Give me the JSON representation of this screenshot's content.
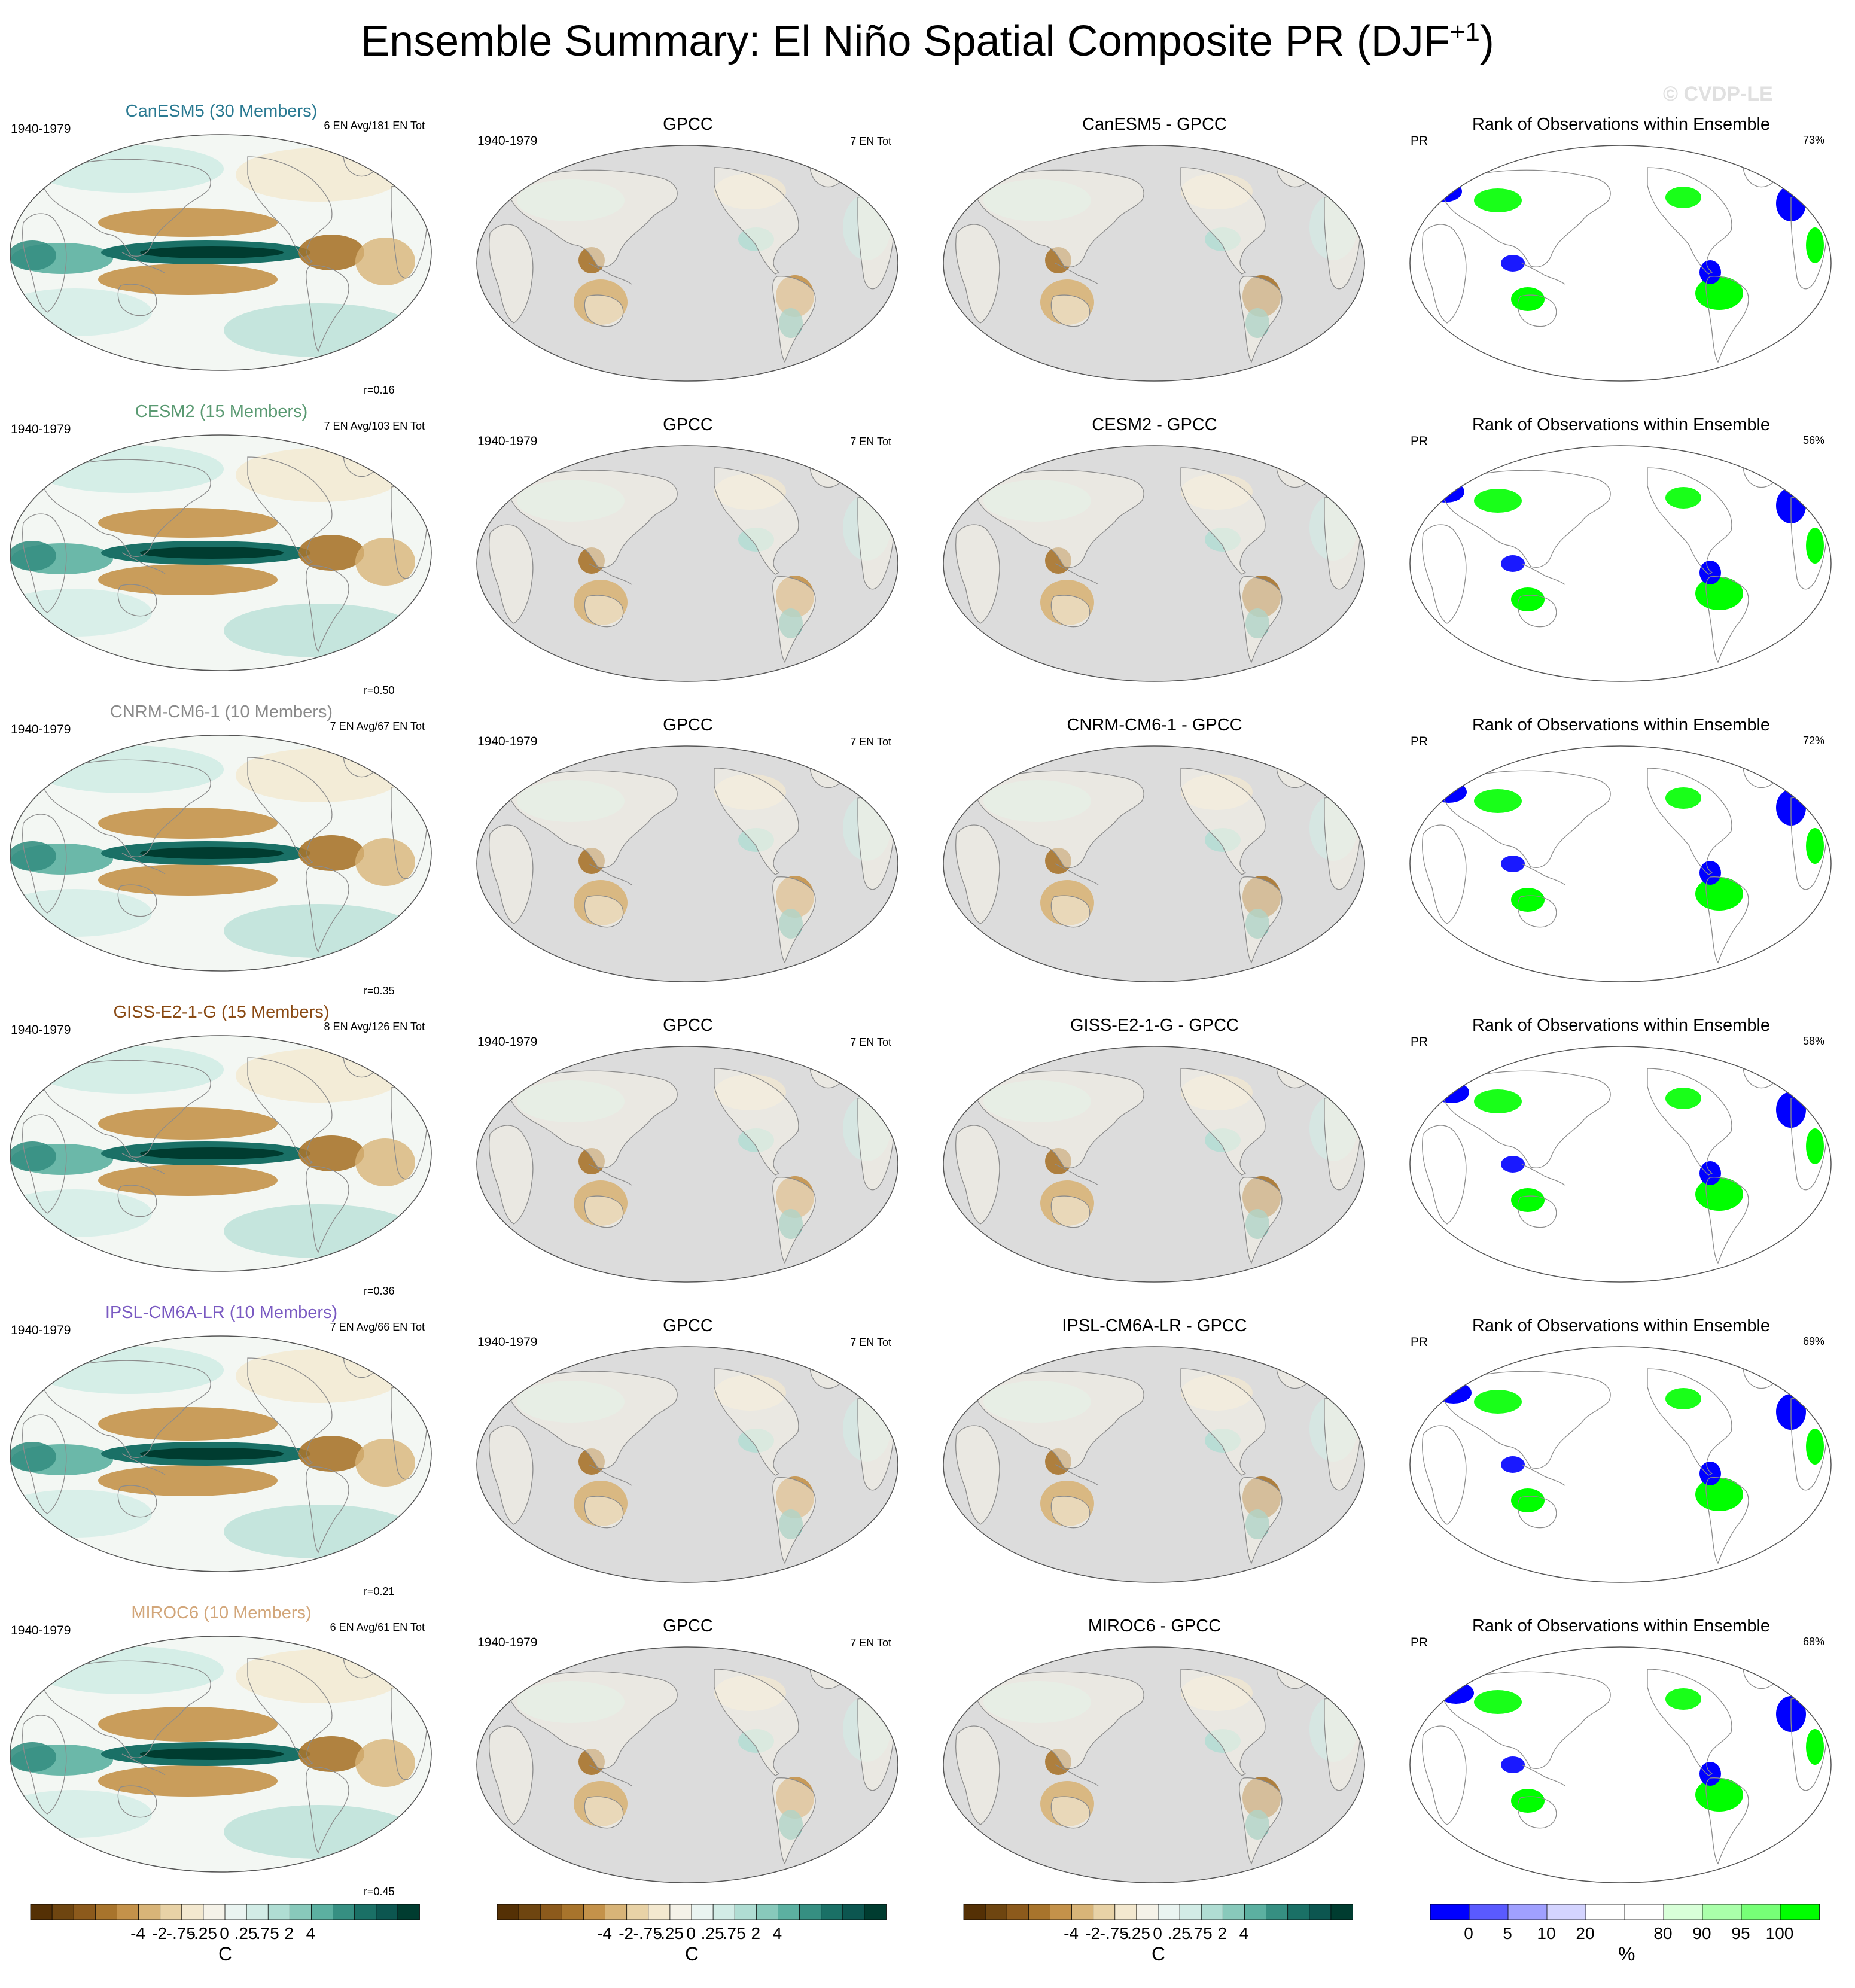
{
  "title": "Ensemble Summary: El Niño Spatial Composite PR (DJF",
  "title_sup": "+1",
  "watermark": "© CVDP-LE",
  "colors": {
    "ocean_gray": "#dcdcdc",
    "coast": "#8c8c8c",
    "rank_low": "#0000ff",
    "rank_high": "#00ff00"
  },
  "rows": [
    {
      "model": "CanESM5",
      "members": "CanESM5 (30 Members)",
      "color": "#2a7a92",
      "years": "1940-1979",
      "events": "6 EN Avg/181 EN Tot",
      "r": "r=0.16",
      "obs_title": "GPCC",
      "obs_years": "1940-1979",
      "obs_events": "7 EN Tot",
      "diff_title": "CanESM5 - GPCC",
      "rank_title": "Rank of Observations within Ensemble",
      "rank_var": "PR",
      "rank_pct": "73%"
    },
    {
      "model": "CESM2",
      "members": "CESM2 (15 Members)",
      "color": "#5a9a72",
      "years": "1940-1979",
      "events": "7 EN Avg/103 EN Tot",
      "r": "r=0.50",
      "obs_title": "GPCC",
      "obs_years": "1940-1979",
      "obs_events": "7 EN Tot",
      "diff_title": "CESM2 - GPCC",
      "rank_title": "Rank of Observations within Ensemble",
      "rank_var": "PR",
      "rank_pct": "56%"
    },
    {
      "model": "CNRM-CM6-1",
      "members": "CNRM-CM6-1 (10 Members)",
      "color": "#8a8a8a",
      "years": "1940-1979",
      "events": "7 EN Avg/67 EN Tot",
      "r": "r=0.35",
      "obs_title": "GPCC",
      "obs_years": "1940-1979",
      "obs_events": "7 EN Tot",
      "diff_title": "CNRM-CM6-1 - GPCC",
      "rank_title": "Rank of Observations within Ensemble",
      "rank_var": "PR",
      "rank_pct": "72%"
    },
    {
      "model": "GISS-E2-1-G",
      "members": "GISS-E2-1-G (15 Members)",
      "color": "#8a4a14",
      "years": "1940-1979",
      "events": "8 EN Avg/126 EN Tot",
      "r": "r=0.36",
      "obs_title": "GPCC",
      "obs_years": "1940-1979",
      "obs_events": "7 EN Tot",
      "diff_title": "GISS-E2-1-G - GPCC",
      "rank_title": "Rank of Observations within Ensemble",
      "rank_var": "PR",
      "rank_pct": "58%"
    },
    {
      "model": "IPSL-CM6A-LR",
      "members": "IPSL-CM6A-LR (10 Members)",
      "color": "#7a5ac2",
      "years": "1940-1979",
      "events": "7 EN Avg/66 EN Tot",
      "r": "r=0.21",
      "obs_title": "GPCC",
      "obs_years": "1940-1979",
      "obs_events": "7 EN Tot",
      "diff_title": "IPSL-CM6A-LR - GPCC",
      "rank_title": "Rank of Observations within Ensemble",
      "rank_var": "PR",
      "rank_pct": "69%"
    },
    {
      "model": "MIROC6",
      "members": "MIROC6 (10 Members)",
      "color": "#d2a67a",
      "years": "1940-1979",
      "events": "6 EN Avg/61 EN Tot",
      "r": "r=0.45",
      "obs_title": "GPCC",
      "obs_years": "1940-1979",
      "obs_events": "7 EN Tot",
      "diff_title": "MIROC6 - GPCC",
      "rank_title": "Rank of Observations within Ensemble",
      "rank_var": "PR",
      "rank_pct": "68%"
    }
  ],
  "colorbars": {
    "pr": {
      "unit": "C",
      "labels": [
        "-4",
        "-2",
        "-.75",
        "-.25",
        "0",
        ".25",
        ".75",
        "2",
        "4"
      ],
      "colors": [
        "#543005",
        "#6e4510",
        "#8c5a1c",
        "#a8742c",
        "#c4924a",
        "#d8b478",
        "#e8d2a6",
        "#f3e8cf",
        "#f5f2e8",
        "#eaf4f1",
        "#d2ece6",
        "#b0ddd3",
        "#88c9bb",
        "#5cb0a1",
        "#368f82",
        "#1a7066",
        "#0c5650",
        "#003c30"
      ]
    },
    "rank": {
      "unit": "%",
      "labels": [
        "0",
        "5",
        "10",
        "20",
        "80",
        "90",
        "95",
        "100"
      ],
      "colors": [
        "#0000ff",
        "#5a5aff",
        "#a0a0ff",
        "#d4d4ff",
        "#ffffff",
        "#ffffff",
        "#d8ffd8",
        "#aaffaa",
        "#77ff77",
        "#00ff00"
      ]
    }
  },
  "chart_data": [
    {
      "type": "heatmap",
      "panel": "ensemble mean composite",
      "title": "CanESM5 (30 Members)",
      "subtitle": "6 EN Avg/181 EN Tot",
      "period": "1940-1979",
      "pattern_correlation": 0.16,
      "unit": "C",
      "levels": [
        -4,
        -2,
        -0.75,
        -0.25,
        0,
        0.25,
        0.75,
        2,
        4
      ]
    },
    {
      "type": "heatmap",
      "panel": "observations",
      "title": "GPCC",
      "subtitle": "7 EN Tot",
      "period": "1940-1979",
      "unit": "C"
    },
    {
      "type": "heatmap",
      "panel": "difference",
      "title": "CanESM5 - GPCC",
      "unit": "C"
    },
    {
      "type": "heatmap",
      "panel": "rank",
      "title": "Rank of Observations within Ensemble",
      "variable": "PR",
      "percent": 73,
      "unit": "%",
      "levels": [
        0,
        5,
        10,
        20,
        80,
        90,
        95,
        100
      ]
    },
    {
      "type": "heatmap",
      "panel": "ensemble mean composite",
      "title": "CESM2 (15 Members)",
      "subtitle": "7 EN Avg/103 EN Tot",
      "period": "1940-1979",
      "pattern_correlation": 0.5,
      "unit": "C"
    },
    {
      "type": "heatmap",
      "panel": "observations",
      "title": "GPCC",
      "subtitle": "7 EN Tot",
      "period": "1940-1979",
      "unit": "C"
    },
    {
      "type": "heatmap",
      "panel": "difference",
      "title": "CESM2 - GPCC",
      "unit": "C"
    },
    {
      "type": "heatmap",
      "panel": "rank",
      "title": "Rank of Observations within Ensemble",
      "variable": "PR",
      "percent": 56,
      "unit": "%"
    },
    {
      "type": "heatmap",
      "panel": "ensemble mean composite",
      "title": "CNRM-CM6-1 (10 Members)",
      "subtitle": "7 EN Avg/67 EN Tot",
      "period": "1940-1979",
      "pattern_correlation": 0.35,
      "unit": "C"
    },
    {
      "type": "heatmap",
      "panel": "observations",
      "title": "GPCC",
      "subtitle": "7 EN Tot",
      "period": "1940-1979",
      "unit": "C"
    },
    {
      "type": "heatmap",
      "panel": "difference",
      "title": "CNRM-CM6-1 - GPCC",
      "unit": "C"
    },
    {
      "type": "heatmap",
      "panel": "rank",
      "title": "Rank of Observations within Ensemble",
      "variable": "PR",
      "percent": 72,
      "unit": "%"
    },
    {
      "type": "heatmap",
      "panel": "ensemble mean composite",
      "title": "GISS-E2-1-G (15 Members)",
      "subtitle": "8 EN Avg/126 EN Tot",
      "period": "1940-1979",
      "pattern_correlation": 0.36,
      "unit": "C"
    },
    {
      "type": "heatmap",
      "panel": "observations",
      "title": "GPCC",
      "subtitle": "7 EN Tot",
      "period": "1940-1979",
      "unit": "C"
    },
    {
      "type": "heatmap",
      "panel": "difference",
      "title": "GISS-E2-1-G - GPCC",
      "unit": "C"
    },
    {
      "type": "heatmap",
      "panel": "rank",
      "title": "Rank of Observations within Ensemble",
      "variable": "PR",
      "percent": 58,
      "unit": "%"
    },
    {
      "type": "heatmap",
      "panel": "ensemble mean composite",
      "title": "IPSL-CM6A-LR (10 Members)",
      "subtitle": "7 EN Avg/66 EN Tot",
      "period": "1940-1979",
      "pattern_correlation": 0.21,
      "unit": "C"
    },
    {
      "type": "heatmap",
      "panel": "observations",
      "title": "GPCC",
      "subtitle": "7 EN Tot",
      "period": "1940-1979",
      "unit": "C"
    },
    {
      "type": "heatmap",
      "panel": "difference",
      "title": "IPSL-CM6A-LR - GPCC",
      "unit": "C"
    },
    {
      "type": "heatmap",
      "panel": "rank",
      "title": "Rank of Observations within Ensemble",
      "variable": "PR",
      "percent": 69,
      "unit": "%"
    },
    {
      "type": "heatmap",
      "panel": "ensemble mean composite",
      "title": "MIROC6 (10 Members)",
      "subtitle": "6 EN Avg/61 EN Tot",
      "period": "1940-1979",
      "pattern_correlation": 0.45,
      "unit": "C"
    },
    {
      "type": "heatmap",
      "panel": "observations",
      "title": "GPCC",
      "subtitle": "7 EN Tot",
      "period": "1940-1979",
      "unit": "C"
    },
    {
      "type": "heatmap",
      "panel": "difference",
      "title": "MIROC6 - GPCC",
      "unit": "C"
    },
    {
      "type": "heatmap",
      "panel": "rank",
      "title": "Rank of Observations within Ensemble",
      "variable": "PR",
      "percent": 68,
      "unit": "%"
    }
  ]
}
